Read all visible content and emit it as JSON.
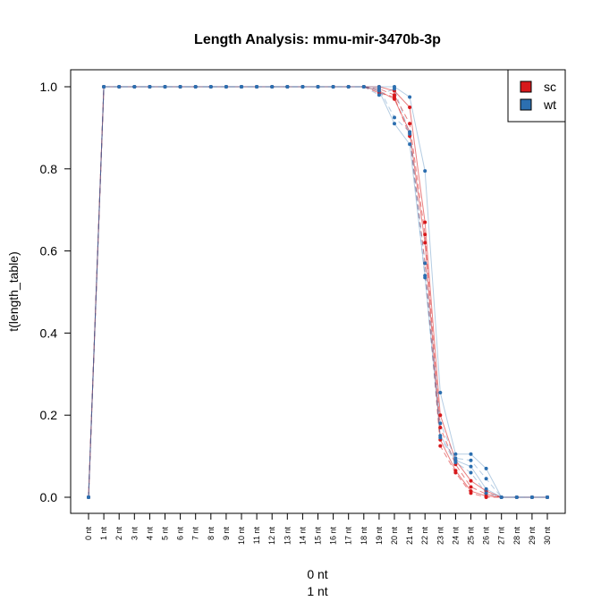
{
  "chart_data": {
    "type": "line",
    "title": "Length Analysis: mmu-mir-3470b-3p",
    "xlabel_lines": [
      "0 nt",
      "1 nt"
    ],
    "ylabel": "t(length_table)",
    "ylim": [
      0,
      1
    ],
    "yticks": [
      "0.0",
      "0.2",
      "0.4",
      "0.6",
      "0.8",
      "1.0"
    ],
    "categories": [
      "0 nt",
      "1 nt",
      "2 nt",
      "3 nt",
      "4 nt",
      "5 nt",
      "6 nt",
      "7 nt",
      "8 nt",
      "9 nt",
      "10 nt",
      "11 nt",
      "12 nt",
      "13 nt",
      "14 nt",
      "15 nt",
      "16 nt",
      "17 nt",
      "18 nt",
      "19 nt",
      "20 nt",
      "21 nt",
      "22 nt",
      "23 nt",
      "24 nt",
      "25 nt",
      "26 nt",
      "27 nt",
      "28 nt",
      "29 nt",
      "30 nt"
    ],
    "legend": {
      "position": "top-right",
      "entries": [
        {
          "label": "sc",
          "color": "#d7191c"
        },
        {
          "label": "wt",
          "color": "#2c6fb0"
        }
      ]
    },
    "series": [
      {
        "group": "sc",
        "color": "#d7191c",
        "values": [
          0,
          1,
          1,
          1,
          1,
          1,
          1,
          1,
          1,
          1,
          1,
          1,
          1,
          1,
          1,
          1,
          1,
          1,
          1,
          1.0,
          0.99,
          0.95,
          0.67,
          0.2,
          0.09,
          0.04,
          0.015,
          0,
          0,
          0,
          0
        ]
      },
      {
        "group": "sc",
        "color": "#d7191c",
        "values": [
          0,
          1,
          1,
          1,
          1,
          1,
          1,
          1,
          1,
          1,
          1,
          1,
          1,
          1,
          1,
          1,
          1,
          1,
          1,
          0.995,
          0.98,
          0.91,
          0.64,
          0.17,
          0.08,
          0.025,
          0.008,
          0,
          0,
          0,
          0
        ]
      },
      {
        "group": "sc",
        "color": "#d7191c",
        "values": [
          0,
          1,
          1,
          1,
          1,
          1,
          1,
          1,
          1,
          1,
          1,
          1,
          1,
          1,
          1,
          1,
          1,
          1,
          1,
          0.99,
          0.97,
          0.89,
          0.62,
          0.14,
          0.065,
          0.015,
          0.003,
          0,
          0,
          0,
          0
        ]
      },
      {
        "group": "sc",
        "color": "#d7191c",
        "values": [
          0,
          1,
          1,
          1,
          1,
          1,
          1,
          1,
          1,
          1,
          1,
          1,
          1,
          1,
          1,
          1,
          1,
          1,
          1,
          0.985,
          0.975,
          0.88,
          0.57,
          0.125,
          0.06,
          0.01,
          0.0,
          0,
          0,
          0,
          0
        ]
      },
      {
        "group": "wt",
        "color": "#2c6fb0",
        "values": [
          0,
          1,
          1,
          1,
          1,
          1,
          1,
          1,
          1,
          1,
          1,
          1,
          1,
          1,
          1,
          1,
          1,
          1,
          1,
          1.0,
          1.0,
          0.975,
          0.795,
          0.255,
          0.105,
          0.105,
          0.07,
          0,
          0,
          0,
          0
        ]
      },
      {
        "group": "wt",
        "color": "#2c6fb0",
        "values": [
          0,
          1,
          1,
          1,
          1,
          1,
          1,
          1,
          1,
          1,
          1,
          1,
          1,
          1,
          1,
          1,
          1,
          1,
          1,
          0.995,
          0.925,
          0.89,
          0.57,
          0.18,
          0.095,
          0.09,
          0.045,
          0,
          0,
          0,
          0
        ]
      },
      {
        "group": "wt",
        "color": "#2c6fb0",
        "values": [
          0,
          1,
          1,
          1,
          1,
          1,
          1,
          1,
          1,
          1,
          1,
          1,
          1,
          1,
          1,
          1,
          1,
          1,
          1,
          0.99,
          0.91,
          0.86,
          0.54,
          0.15,
          0.09,
          0.075,
          0.02,
          0,
          0,
          0,
          0
        ]
      },
      {
        "group": "wt",
        "color": "#2c6fb0",
        "values": [
          0,
          1,
          1,
          1,
          1,
          1,
          1,
          1,
          1,
          1,
          1,
          1,
          1,
          1,
          1,
          1,
          1,
          1,
          1,
          0.98,
          0.995,
          0.885,
          0.535,
          0.145,
          0.085,
          0.06,
          0.01,
          0,
          0,
          0,
          0
        ]
      }
    ]
  }
}
